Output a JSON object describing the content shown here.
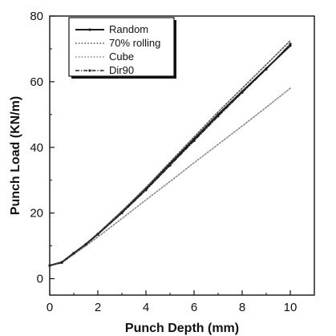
{
  "chart_data": {
    "type": "line",
    "title": "",
    "xlabel": "Punch Depth (mm)",
    "ylabel": "Punch Load (KN/m)",
    "xlim": [
      0,
      11
    ],
    "ylim": [
      -5,
      80
    ],
    "x_ticks": [
      0,
      2,
      4,
      6,
      8,
      10
    ],
    "y_ticks": [
      0,
      20,
      40,
      60,
      80
    ],
    "x": [
      0,
      0.5,
      1,
      1.5,
      2,
      3,
      4,
      5,
      6,
      7,
      8,
      9,
      10
    ],
    "series": [
      {
        "name": "Random",
        "style": "solid",
        "color": "#1a1a1a",
        "values": [
          4.0,
          5.0,
          7.8,
          10.5,
          13.6,
          20.3,
          27.4,
          35.0,
          42.5,
          50.0,
          57.0,
          64.0,
          71.0
        ]
      },
      {
        "name": "70% rolling",
        "style": "dotted",
        "color": "#555555",
        "values": [
          4.0,
          5.0,
          7.8,
          10.6,
          13.8,
          20.6,
          27.8,
          35.5,
          43.2,
          50.8,
          58.0,
          65.2,
          72.5
        ]
      },
      {
        "name": "Cube",
        "style": "dotted",
        "color": "#888888",
        "values": [
          4.0,
          4.8,
          7.4,
          10.0,
          12.7,
          18.3,
          24.0,
          29.6,
          35.3,
          40.9,
          46.5,
          52.2,
          58.0
        ]
      },
      {
        "name": "Dir90",
        "style": "dashdot",
        "color": "#222222",
        "values": [
          4.0,
          4.9,
          7.7,
          10.4,
          13.5,
          20.0,
          27.0,
          34.5,
          42.0,
          49.5,
          56.7,
          63.8,
          71.5
        ]
      }
    ],
    "legend_position": "top-left"
  }
}
